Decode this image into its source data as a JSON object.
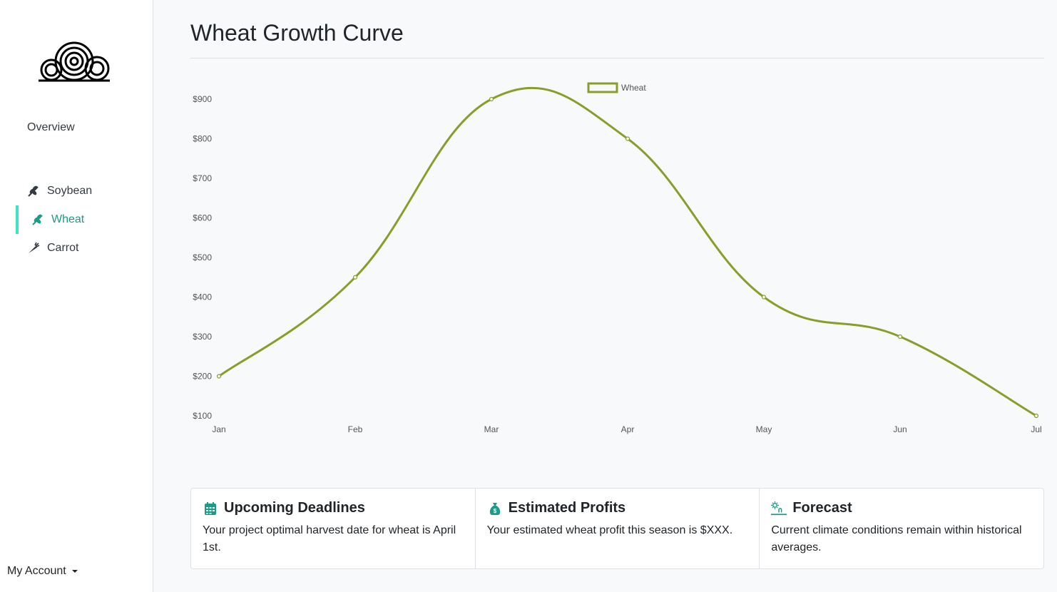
{
  "sidebar": {
    "overview_label": "Overview",
    "items": [
      {
        "label": "Soybean",
        "icon": "seedling-icon"
      },
      {
        "label": "Wheat",
        "icon": "wheat-icon"
      },
      {
        "label": "Carrot",
        "icon": "carrot-icon"
      }
    ],
    "active_item": "Wheat",
    "account_label": "My Account"
  },
  "page": {
    "title": "Wheat Growth Curve"
  },
  "colors": {
    "accent": "#1a9c87",
    "active_bar": "#3de6c3",
    "series": "#8a9d2a"
  },
  "chart_data": {
    "type": "line",
    "categories": [
      "Jan",
      "Feb",
      "Mar",
      "Apr",
      "May",
      "Jun",
      "Jul"
    ],
    "series": [
      {
        "name": "Wheat",
        "values": [
          200,
          450,
          900,
          800,
          400,
          300,
          100
        ]
      }
    ],
    "y_ticks": [
      "$900",
      "$800",
      "$700",
      "$600",
      "$500",
      "$400",
      "$300",
      "$200",
      "$100"
    ],
    "ylim": [
      100,
      900
    ],
    "legend": "top-center",
    "grid": false
  },
  "cards": [
    {
      "title": "Upcoming Deadlines",
      "icon": "calendar-icon",
      "text": "Your project optimal harvest date for wheat is April 1st."
    },
    {
      "title": "Estimated Profits",
      "icon": "money-bag-icon",
      "text": "Your estimated wheat profit this season is $XXX."
    },
    {
      "title": "Forecast",
      "icon": "weather-icon",
      "text": "Current climate conditions remain within historical averages."
    }
  ]
}
